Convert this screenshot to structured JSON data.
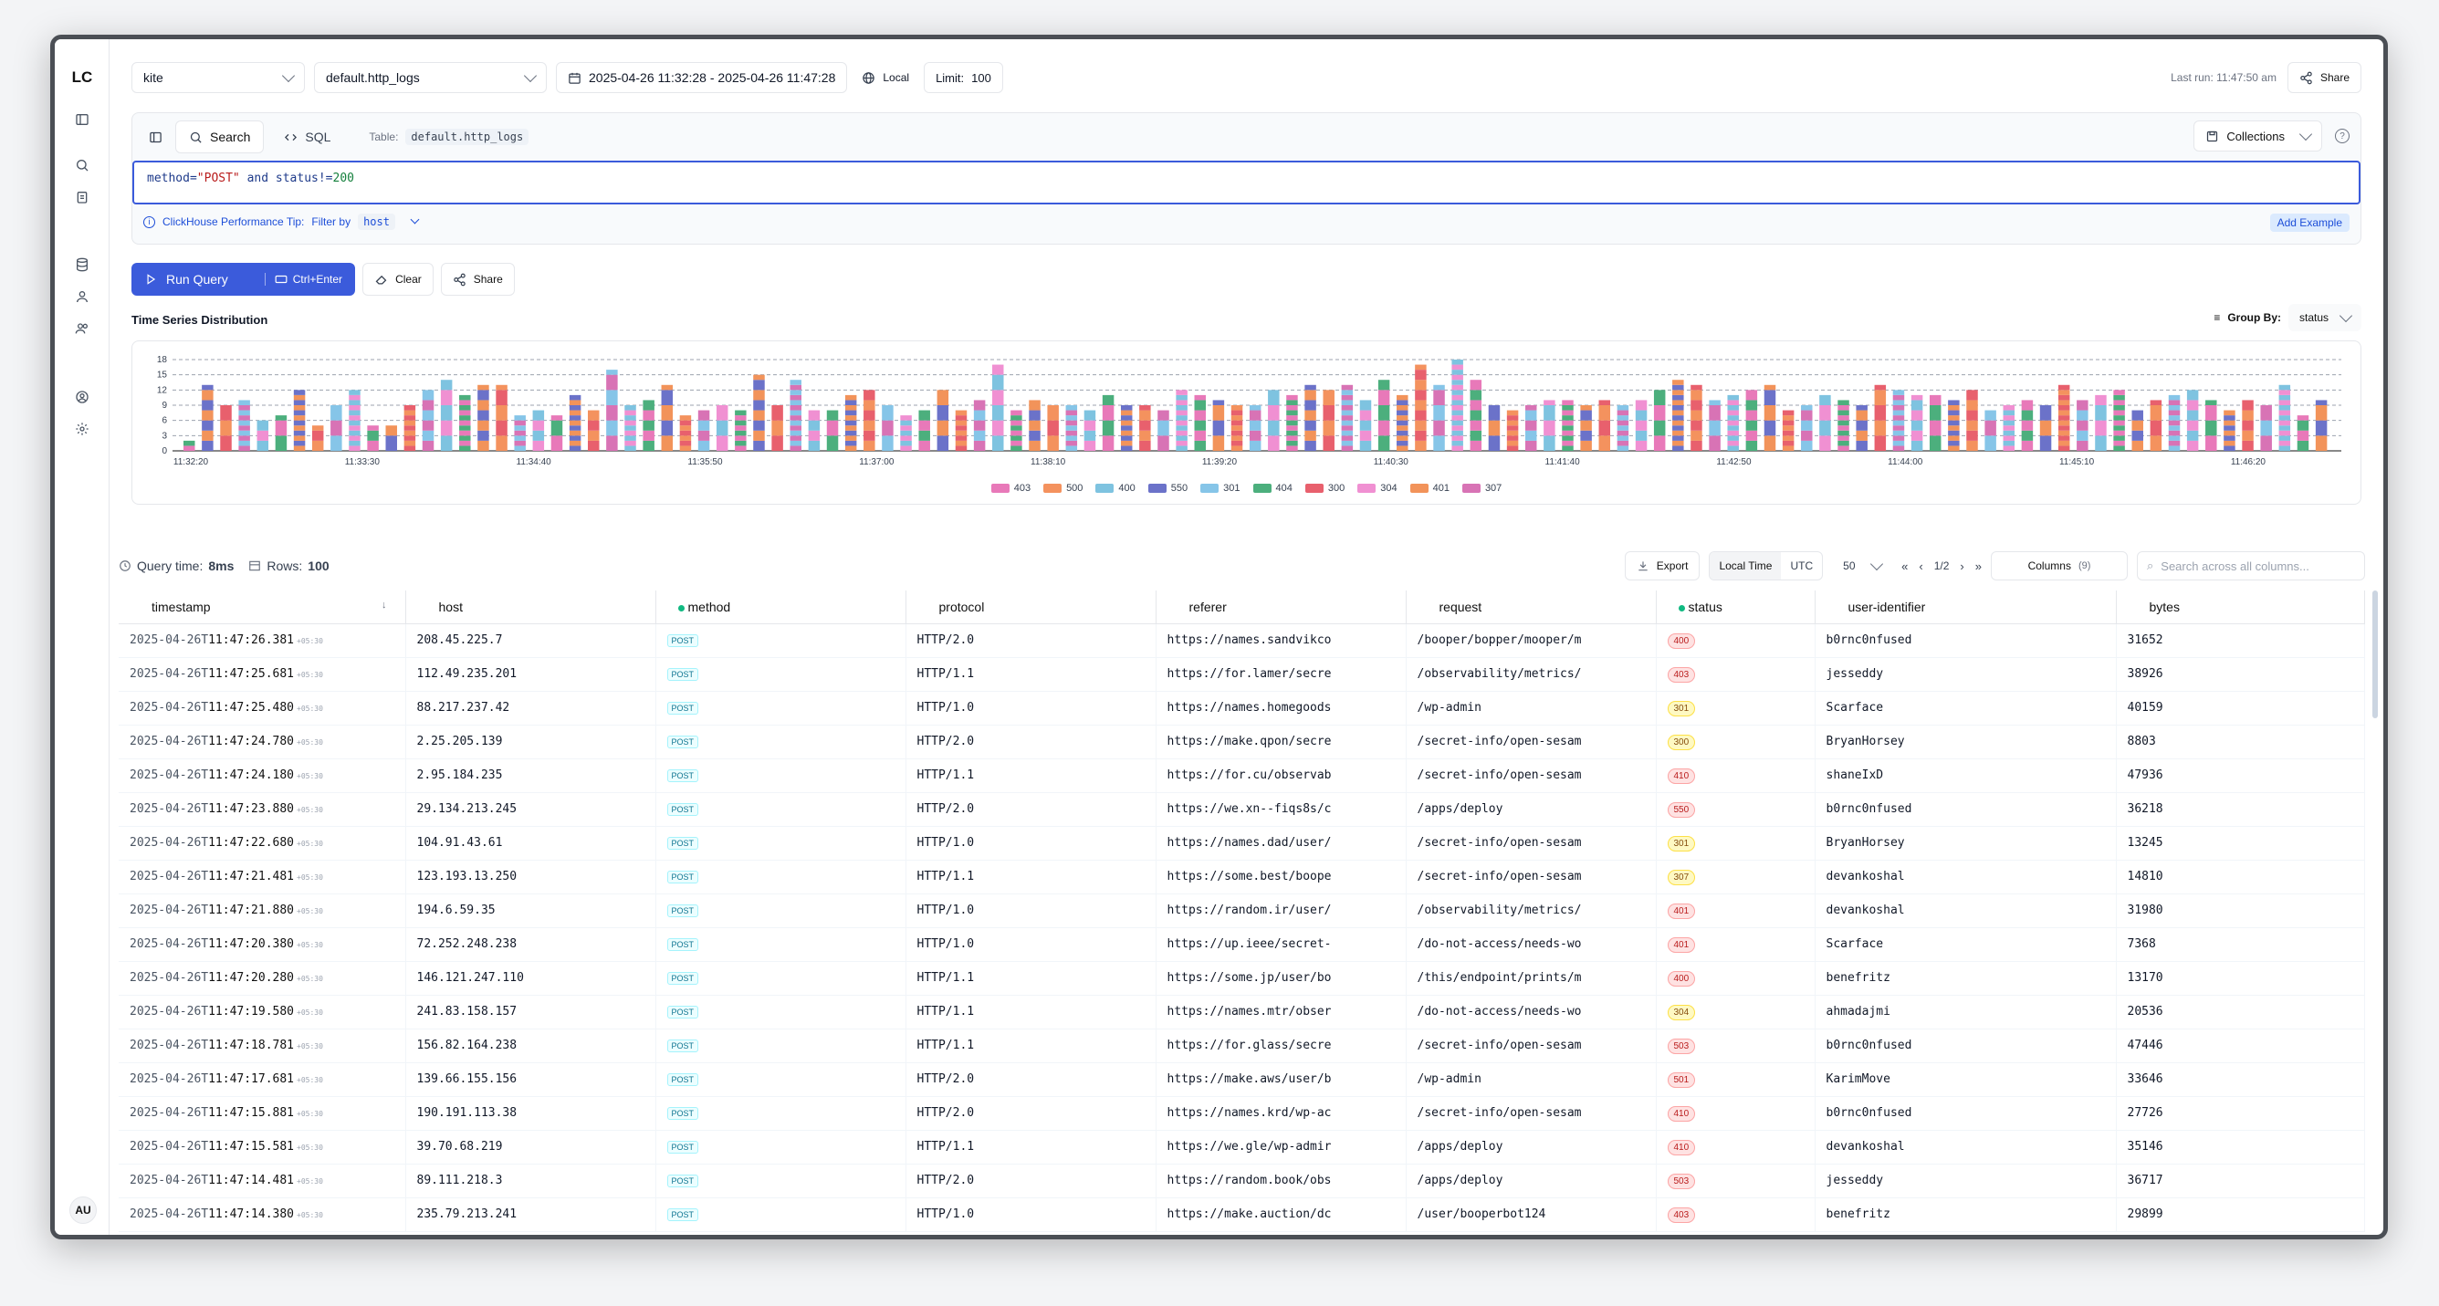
{
  "app": {
    "logo": "LC",
    "avatar": "AU"
  },
  "topbar": {
    "database": "kite",
    "table": "default.http_logs",
    "date_range": "2025-04-26 11:32:28 - 2025-04-26 11:47:28",
    "timezone": "Local",
    "limit_label": "Limit:",
    "limit_value": "100",
    "last_run": "Last run: 11:47:50 am",
    "share": "Share"
  },
  "query": {
    "tab_search": "Search",
    "tab_sql": "SQL",
    "table_label": "Table:",
    "table_value": "default.http_logs",
    "collections": "Collections",
    "tip_title": "ClickHouse Performance Tip:",
    "tip_text": "Filter by",
    "tip_code": "host",
    "add_example": "Add Example"
  },
  "actions": {
    "run": "Run Query",
    "shortcut": "Ctrl+Enter",
    "clear": "Clear",
    "share": "Share"
  },
  "chart_section": {
    "title": "Time Series Distribution",
    "group_by_label": "Group By:",
    "group_by_value": "status"
  },
  "chart_data": {
    "type": "bar",
    "stacked": true,
    "yticks": [
      0,
      3,
      6,
      9,
      12,
      15,
      18
    ],
    "ylim": [
      0,
      18
    ],
    "xticks": [
      "11:32:20",
      "11:33:30",
      "11:34:40",
      "11:35:50",
      "11:37:00",
      "11:38:10",
      "11:39:20",
      "11:40:30",
      "11:41:40",
      "11:42:50",
      "11:44:00",
      "11:45:10",
      "11:46:20"
    ],
    "series_names": [
      "403",
      "500",
      "400",
      "550",
      "301",
      "404",
      "300",
      "304",
      "401",
      "307"
    ],
    "colors": [
      "#e879b9",
      "#f4925e",
      "#7ec3e0",
      "#6b72c9",
      "#86c5e8",
      "#4caf7d",
      "#e8606d",
      "#f090d2",
      "#f2935a",
      "#d873b5"
    ],
    "totals": [
      2,
      13,
      9,
      10,
      6,
      7,
      12,
      5,
      9,
      12,
      5,
      5,
      9,
      12,
      14,
      11,
      13,
      13,
      7,
      8,
      7,
      11,
      8,
      16,
      9,
      10,
      13,
      7,
      8,
      9,
      8,
      15,
      9,
      14,
      8,
      8,
      11,
      12,
      9,
      7,
      8,
      12,
      8,
      10,
      17,
      8,
      10,
      9,
      9,
      8,
      11,
      9,
      9,
      8,
      12,
      11,
      10,
      9,
      9,
      12,
      11,
      13,
      12,
      13,
      10,
      14,
      11,
      17,
      13,
      18,
      14,
      9,
      8,
      9,
      10,
      10,
      9,
      10,
      9,
      10,
      12,
      14,
      13,
      10,
      11,
      12,
      13,
      8,
      9,
      11,
      10,
      9,
      13,
      12,
      11,
      11,
      10,
      12,
      8,
      9,
      10,
      9,
      13,
      10,
      11,
      12,
      8,
      10,
      11,
      12,
      10,
      8,
      10,
      9,
      13,
      7,
      10
    ]
  },
  "stats": {
    "query_time_label": "Query time:",
    "query_time": "8ms",
    "rows_label": "Rows:",
    "rows": "100",
    "export": "Export",
    "local_time": "Local Time",
    "utc": "UTC",
    "page_size": "50",
    "page": "1/2",
    "columns": "Columns",
    "columns_count": "(9)",
    "search_placeholder": "Search across all columns..."
  },
  "table": {
    "columns": [
      "timestamp",
      "host",
      "method",
      "protocol",
      "referer",
      "request",
      "status",
      "user-identifier",
      "bytes"
    ],
    "tz": "+05:30",
    "rows": [
      [
        "2025-04-26T",
        "11:47:26.381",
        "208.45.225.7",
        "POST",
        "HTTP/2.0",
        "https://names.sandvikco",
        "/booper/bopper/mooper/m",
        "400",
        "b0rnc0nfused",
        "31652"
      ],
      [
        "2025-04-26T",
        "11:47:25.681",
        "112.49.235.201",
        "POST",
        "HTTP/1.1",
        "https://for.lamer/secre",
        "/observability/metrics/",
        "403",
        "jesseddy",
        "38926"
      ],
      [
        "2025-04-26T",
        "11:47:25.480",
        "88.217.237.42",
        "POST",
        "HTTP/1.0",
        "https://names.homegoods",
        "/wp-admin",
        "301",
        "Scarface",
        "40159"
      ],
      [
        "2025-04-26T",
        "11:47:24.780",
        "2.25.205.139",
        "POST",
        "HTTP/2.0",
        "https://make.qpon/secre",
        "/secret-info/open-sesam",
        "300",
        "BryanHorsey",
        "8803"
      ],
      [
        "2025-04-26T",
        "11:47:24.180",
        "2.95.184.235",
        "POST",
        "HTTP/1.1",
        "https://for.cu/observab",
        "/secret-info/open-sesam",
        "410",
        "shaneIxD",
        "47936"
      ],
      [
        "2025-04-26T",
        "11:47:23.880",
        "29.134.213.245",
        "POST",
        "HTTP/2.0",
        "https://we.xn--fiqs8s/c",
        "/apps/deploy",
        "550",
        "b0rnc0nfused",
        "36218"
      ],
      [
        "2025-04-26T",
        "11:47:22.680",
        "104.91.43.61",
        "POST",
        "HTTP/1.0",
        "https://names.dad/user/",
        "/secret-info/open-sesam",
        "301",
        "BryanHorsey",
        "13245"
      ],
      [
        "2025-04-26T",
        "11:47:21.481",
        "123.193.13.250",
        "POST",
        "HTTP/1.1",
        "https://some.best/boope",
        "/secret-info/open-sesam",
        "307",
        "devankoshal",
        "14810"
      ],
      [
        "2025-04-26T",
        "11:47:21.880",
        "194.6.59.35",
        "POST",
        "HTTP/1.0",
        "https://random.ir/user/",
        "/observability/metrics/",
        "401",
        "devankoshal",
        "31980"
      ],
      [
        "2025-04-26T",
        "11:47:20.380",
        "72.252.248.238",
        "POST",
        "HTTP/1.0",
        "https://up.ieee/secret-",
        "/do-not-access/needs-wo",
        "401",
        "Scarface",
        "7368"
      ],
      [
        "2025-04-26T",
        "11:47:20.280",
        "146.121.247.110",
        "POST",
        "HTTP/1.1",
        "https://some.jp/user/bo",
        "/this/endpoint/prints/m",
        "400",
        "benefritz",
        "13170"
      ],
      [
        "2025-04-26T",
        "11:47:19.580",
        "241.83.158.157",
        "POST",
        "HTTP/1.1",
        "https://names.mtr/obser",
        "/do-not-access/needs-wo",
        "304",
        "ahmadajmi",
        "20536"
      ],
      [
        "2025-04-26T",
        "11:47:18.781",
        "156.82.164.238",
        "POST",
        "HTTP/1.1",
        "https://for.glass/secre",
        "/secret-info/open-sesam",
        "503",
        "b0rnc0nfused",
        "47446"
      ],
      [
        "2025-04-26T",
        "11:47:17.681",
        "139.66.155.156",
        "POST",
        "HTTP/2.0",
        "https://make.aws/user/b",
        "/wp-admin",
        "501",
        "KarimMove",
        "33646"
      ],
      [
        "2025-04-26T",
        "11:47:15.881",
        "190.191.113.38",
        "POST",
        "HTTP/2.0",
        "https://names.krd/wp-ac",
        "/secret-info/open-sesam",
        "410",
        "b0rnc0nfused",
        "27726"
      ],
      [
        "2025-04-26T",
        "11:47:15.581",
        "39.70.68.219",
        "POST",
        "HTTP/1.1",
        "https://we.gle/wp-admir",
        "/apps/deploy",
        "410",
        "devankoshal",
        "35146"
      ],
      [
        "2025-04-26T",
        "11:47:14.481",
        "89.111.218.3",
        "POST",
        "HTTP/2.0",
        "https://random.book/obs",
        "/apps/deploy",
        "503",
        "jesseddy",
        "36717"
      ],
      [
        "2025-04-26T",
        "11:47:14.380",
        "235.79.213.241",
        "POST",
        "HTTP/1.0",
        "https://make.auction/dc",
        "/user/booperbot124",
        "403",
        "benefritz",
        "29899"
      ]
    ]
  }
}
